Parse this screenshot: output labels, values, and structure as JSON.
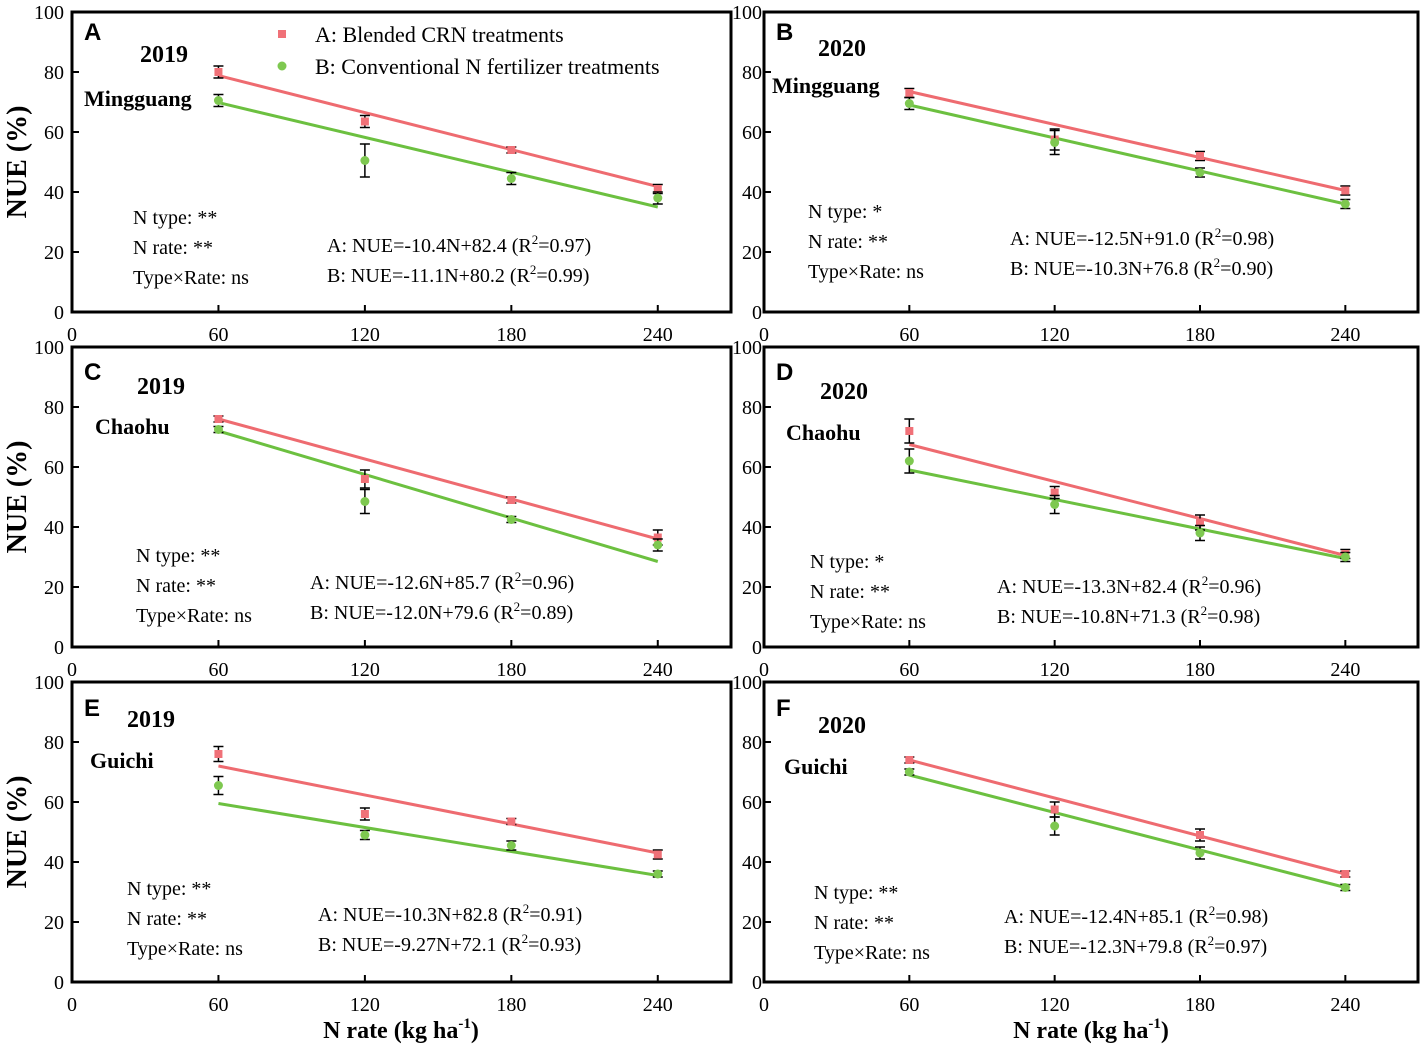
{
  "figure": {
    "y_axis_label": "NUE (%)",
    "x_axis_label_main": "N rate (kg ha",
    "x_axis_label_sup": "-1",
    "x_axis_label_end": ")",
    "legend": [
      {
        "label": "A: Blended CRN treatments",
        "color": "#f07178",
        "marker": "square"
      },
      {
        "label": "B: Conventional N fertilizer treatments",
        "color": "#7ec850",
        "marker": "circle"
      }
    ],
    "line_colors": {
      "A": "#ee6b70",
      "B": "#6cc040"
    }
  },
  "chart_data": [
    {
      "type": "scatter",
      "panel": "A",
      "year": "2019",
      "site": "Mingguang",
      "x": [
        60,
        120,
        180,
        240
      ],
      "xlim": [
        0,
        270
      ],
      "ylim": [
        0,
        100
      ],
      "xticks": [
        0,
        60,
        120,
        180,
        240
      ],
      "yticks": [
        0,
        20,
        40,
        60,
        80,
        100
      ],
      "series": [
        {
          "name": "A",
          "values": [
            80,
            63.5,
            54,
            41
          ],
          "errors": [
            2,
            2,
            1,
            1.5
          ],
          "fit": [
            78.8,
            41.8
          ]
        },
        {
          "name": "B",
          "values": [
            70.5,
            50.5,
            44.5,
            38
          ],
          "errors": [
            2,
            5.5,
            2,
            2
          ],
          "fit": [
            69.8,
            35.0
          ]
        }
      ],
      "stats": [
        "N type: **",
        "N rate: **",
        "Type×Rate: ns"
      ],
      "equations": [
        {
          "prefix": "A: NUE=-10.4N+82.4 (R",
          "sup": "2",
          "suffix": "=0.97)"
        },
        {
          "prefix": "B: NUE=-11.1N+80.2 (R",
          "sup": "2",
          "suffix": "=0.99)"
        }
      ]
    },
    {
      "type": "scatter",
      "panel": "B",
      "year": "2020",
      "site": "Mingguang",
      "x": [
        60,
        120,
        180,
        240
      ],
      "xlim": [
        0,
        270
      ],
      "ylim": [
        0,
        100
      ],
      "xticks": [
        0,
        60,
        120,
        180,
        240
      ],
      "yticks": [
        0,
        20,
        40,
        60,
        80,
        100
      ],
      "series": [
        {
          "name": "A",
          "values": [
            73,
            57.5,
            52,
            40.5
          ],
          "errors": [
            1.5,
            3.5,
            1.5,
            1.5
          ],
          "fit": [
            73.5,
            40.5
          ]
        },
        {
          "name": "B",
          "values": [
            69.5,
            56.5,
            46.5,
            36
          ],
          "errors": [
            2,
            4,
            1.5,
            1.5
          ],
          "fit": [
            69.0,
            36.0
          ]
        }
      ],
      "stats": [
        "N type: *",
        "N rate: **",
        "Type×Rate: ns"
      ],
      "equations": [
        {
          "prefix": "A: NUE=-12.5N+91.0 (R",
          "sup": "2",
          "suffix": "=0.98)"
        },
        {
          "prefix": "B: NUE=-10.3N+76.8 (R",
          "sup": "2",
          "suffix": "=0.90)"
        }
      ]
    },
    {
      "type": "scatter",
      "panel": "C",
      "year": "2019",
      "site": "Chaohu",
      "x": [
        60,
        120,
        180,
        240
      ],
      "xlim": [
        0,
        270
      ],
      "ylim": [
        0,
        100
      ],
      "xticks": [
        0,
        60,
        120,
        180,
        240
      ],
      "yticks": [
        0,
        20,
        40,
        60,
        80,
        100
      ],
      "series": [
        {
          "name": "A",
          "values": [
            76,
            56,
            49,
            36.5
          ],
          "errors": [
            1,
            3,
            1,
            2.5
          ],
          "fit": [
            76.0,
            36.0
          ]
        },
        {
          "name": "B",
          "values": [
            72.5,
            48.5,
            42.5,
            34
          ],
          "errors": [
            1,
            4,
            1,
            2
          ],
          "fit": [
            72.0,
            28.5
          ]
        }
      ],
      "stats": [
        "N type: **",
        "N rate: **",
        "Type×Rate: ns"
      ],
      "equations": [
        {
          "prefix": "A: NUE=-12.6N+85.7 (R",
          "sup": "2",
          "suffix": "=0.96)"
        },
        {
          "prefix": "B: NUE=-12.0N+79.6 (R",
          "sup": "2",
          "suffix": "=0.89)"
        }
      ]
    },
    {
      "type": "scatter",
      "panel": "D",
      "year": "2020",
      "site": "Chaohu",
      "x": [
        60,
        120,
        180,
        240
      ],
      "xlim": [
        0,
        270
      ],
      "ylim": [
        0,
        100
      ],
      "xticks": [
        0,
        60,
        120,
        180,
        240
      ],
      "yticks": [
        0,
        20,
        40,
        60,
        80,
        100
      ],
      "series": [
        {
          "name": "A",
          "values": [
            72,
            51.5,
            41.5,
            31
          ],
          "errors": [
            4,
            2,
            2.5,
            1.5
          ],
          "fit": [
            67.5,
            30.5
          ]
        },
        {
          "name": "B",
          "values": [
            62,
            47.5,
            38,
            30
          ],
          "errors": [
            4,
            3,
            2.5,
            1.5
          ],
          "fit": [
            59.0,
            29.5
          ]
        }
      ],
      "stats": [
        "N type: *",
        "N rate: **",
        "Type×Rate: ns"
      ],
      "equations": [
        {
          "prefix": "A: NUE=-13.3N+82.4 (R",
          "sup": "2",
          "suffix": "=0.96)"
        },
        {
          "prefix": "B: NUE=-10.8N+71.3 (R",
          "sup": "2",
          "suffix": "=0.98)"
        }
      ]
    },
    {
      "type": "scatter",
      "panel": "E",
      "year": "2019",
      "site": "Guichi",
      "x": [
        60,
        120,
        180,
        240
      ],
      "xlim": [
        0,
        270
      ],
      "ylim": [
        0,
        100
      ],
      "xticks": [
        0,
        60,
        120,
        180,
        240
      ],
      "yticks": [
        0,
        20,
        40,
        60,
        80,
        100
      ],
      "series": [
        {
          "name": "A",
          "values": [
            76,
            56,
            53.5,
            42.5
          ],
          "errors": [
            2.5,
            2,
            1,
            1.5
          ],
          "fit": [
            72.0,
            43.0
          ]
        },
        {
          "name": "B",
          "values": [
            65.5,
            49,
            45.5,
            36
          ],
          "errors": [
            3,
            1.5,
            1.5,
            1
          ],
          "fit": [
            59.5,
            35.5
          ]
        }
      ],
      "stats": [
        "N type: **",
        "N rate: **",
        "Type×Rate: ns"
      ],
      "equations": [
        {
          "prefix": "A: NUE=-10.3N+82.8 (R",
          "sup": "2",
          "suffix": "=0.91)"
        },
        {
          "prefix": "B: NUE=-9.27N+72.1 (R",
          "sup": "2",
          "suffix": "=0.93)"
        }
      ]
    },
    {
      "type": "scatter",
      "panel": "F",
      "year": "2020",
      "site": "Guichi",
      "x": [
        60,
        120,
        180,
        240
      ],
      "xlim": [
        0,
        270
      ],
      "ylim": [
        0,
        100
      ],
      "xticks": [
        0,
        60,
        120,
        180,
        240
      ],
      "yticks": [
        0,
        20,
        40,
        60,
        80,
        100
      ],
      "series": [
        {
          "name": "A",
          "values": [
            74,
            57.5,
            49,
            36
          ],
          "errors": [
            1,
            2.5,
            2,
            1
          ],
          "fit": [
            74.0,
            36.0
          ]
        },
        {
          "name": "B",
          "values": [
            70,
            52,
            43,
            31.5
          ],
          "errors": [
            1,
            3,
            2,
            1
          ],
          "fit": [
            69.0,
            31.5
          ]
        }
      ],
      "stats": [
        "N type: **",
        "N rate: **",
        "Type×Rate: ns"
      ],
      "equations": [
        {
          "prefix": "A: NUE=-12.4N+85.1 (R",
          "sup": "2",
          "suffix": "=0.98)"
        },
        {
          "prefix": "B: NUE=-12.3N+79.8 (R",
          "sup": "2",
          "suffix": "=0.97)"
        }
      ]
    }
  ]
}
